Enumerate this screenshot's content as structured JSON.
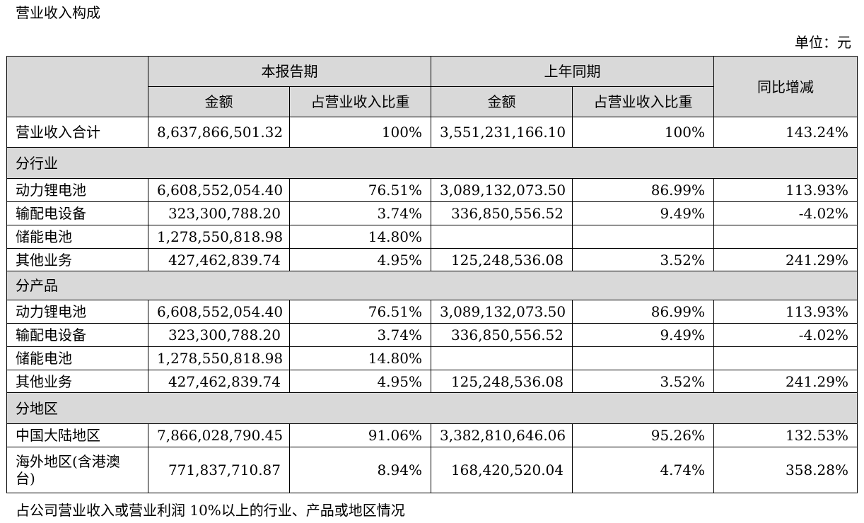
{
  "title": "营业收入构成",
  "unit": "单位：元",
  "footer": "占公司营业收入或营业利润 10%以上的行业、产品或地区情况",
  "headers": {
    "current_period": "本报告期",
    "prior_period": "上年同期",
    "yoy": "同比增减",
    "amount": "金额",
    "share": "占营业收入比重"
  },
  "total": {
    "label": "营业收入合计",
    "cur_amount": "8,637,866,501.32",
    "cur_share": "100%",
    "prev_amount": "3,551,231,166.10",
    "prev_share": "100%",
    "yoy": "143.24%"
  },
  "sections": [
    {
      "title": "分行业",
      "rows": [
        {
          "label": "动力锂电池",
          "cur_amount": "6,608,552,054.40",
          "cur_share": "76.51%",
          "prev_amount": "3,089,132,073.50",
          "prev_share": "86.99%",
          "yoy": "113.93%"
        },
        {
          "label": "输配电设备",
          "cur_amount": "323,300,788.20",
          "cur_share": "3.74%",
          "prev_amount": "336,850,556.52",
          "prev_share": "9.49%",
          "yoy": "-4.02%"
        },
        {
          "label": "储能电池",
          "cur_amount": "1,278,550,818.98",
          "cur_share": "14.80%",
          "prev_amount": "",
          "prev_share": "",
          "yoy": ""
        },
        {
          "label": "其他业务",
          "cur_amount": "427,462,839.74",
          "cur_share": "4.95%",
          "prev_amount": "125,248,536.08",
          "prev_share": "3.52%",
          "yoy": "241.29%"
        }
      ]
    },
    {
      "title": "分产品",
      "rows": [
        {
          "label": "动力锂电池",
          "cur_amount": "6,608,552,054.40",
          "cur_share": "76.51%",
          "prev_amount": "3,089,132,073.50",
          "prev_share": "86.99%",
          "yoy": "113.93%"
        },
        {
          "label": "输配电设备",
          "cur_amount": "323,300,788.20",
          "cur_share": "3.74%",
          "prev_amount": "336,850,556.52",
          "prev_share": "9.49%",
          "yoy": "-4.02%"
        },
        {
          "label": "储能电池",
          "cur_amount": "1,278,550,818.98",
          "cur_share": "14.80%",
          "prev_amount": "",
          "prev_share": "",
          "yoy": ""
        },
        {
          "label": "其他业务",
          "cur_amount": "427,462,839.74",
          "cur_share": "4.95%",
          "prev_amount": "125,248,536.08",
          "prev_share": "3.52%",
          "yoy": "241.29%"
        }
      ]
    },
    {
      "title": "分地区",
      "rows": [
        {
          "label": "中国大陆地区",
          "cur_amount": "7,866,028,790.45",
          "cur_share": "91.06%",
          "prev_amount": "3,382,810,646.06",
          "prev_share": "95.26%",
          "yoy": "132.53%"
        },
        {
          "label": "海外地区(含港澳台)",
          "cur_amount": "771,837,710.87",
          "cur_share": "8.94%",
          "prev_amount": "168,420,520.04",
          "prev_share": "4.74%",
          "yoy": "358.28%"
        }
      ]
    }
  ]
}
